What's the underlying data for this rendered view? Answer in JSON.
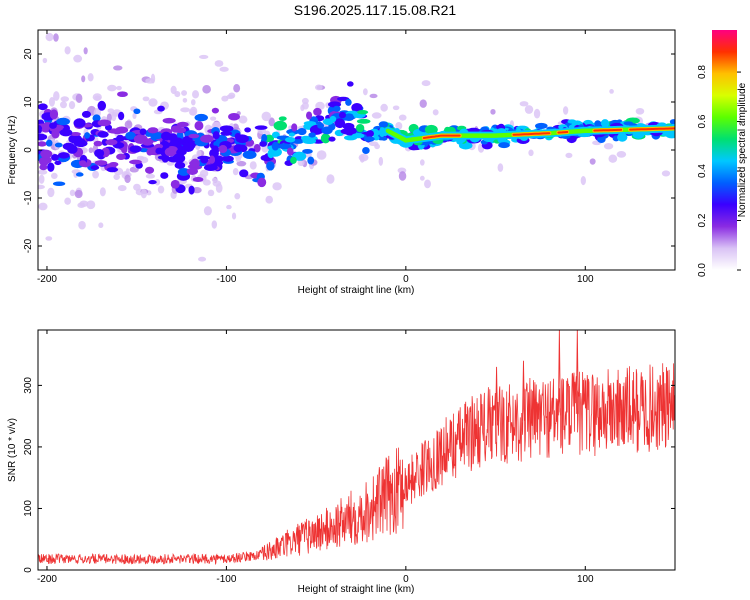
{
  "title": "S196.2025.117.15.08.R21",
  "chart_data": [
    {
      "type": "heatmap",
      "xlabel": "Height of straight line (km)",
      "ylabel": "Frequency (Hz)",
      "xlim": [
        -205,
        150
      ],
      "ylim": [
        -25,
        25
      ],
      "xticks": [
        -200,
        -100,
        0,
        100
      ],
      "yticks": [
        -20,
        -10,
        0,
        10,
        20
      ],
      "colorbar": {
        "label": "Normalized spectral amplitude",
        "ticks": [
          "0.0",
          "0.2",
          "0.4",
          "0.6",
          "0.8"
        ],
        "tick_values": [
          0,
          0.2,
          0.4,
          0.6,
          0.8
        ],
        "range": [
          0,
          0.97
        ],
        "colormap": [
          "#ffffff",
          "#d9c2f5",
          "#8a2be2",
          "#3a00ff",
          "#0060ff",
          "#00c8ff",
          "#00e070",
          "#5cff00",
          "#d8ff00",
          "#ffc000",
          "#ff3000",
          "#ff0080"
        ]
      },
      "ridge": [
        {
          "x": -200,
          "y": 2
        },
        {
          "x": -150,
          "y": 1
        },
        {
          "x": -100,
          "y": 1
        },
        {
          "x": -75,
          "y": 0
        },
        {
          "x": -60,
          "y": 2
        },
        {
          "x": -50,
          "y": 4
        },
        {
          "x": -40,
          "y": 7
        },
        {
          "x": -30,
          "y": 6
        },
        {
          "x": -20,
          "y": 3
        },
        {
          "x": -10,
          "y": 4
        },
        {
          "x": 0,
          "y": 2
        },
        {
          "x": 20,
          "y": 3
        },
        {
          "x": 50,
          "y": 3
        },
        {
          "x": 80,
          "y": 3.5
        },
        {
          "x": 100,
          "y": 4
        },
        {
          "x": 150,
          "y": 4.5
        }
      ]
    },
    {
      "type": "line",
      "xlabel": "Height of straight line (km)",
      "ylabel": "SNR (10 * v/v)",
      "xlim": [
        -205,
        150
      ],
      "ylim": [
        0,
        390
      ],
      "xticks": [
        -200,
        -100,
        0,
        100
      ],
      "yticks": [
        0,
        100,
        200,
        300
      ],
      "series_color": "#ee3333",
      "trend": [
        {
          "x": -205,
          "y": 18
        },
        {
          "x": -100,
          "y": 18
        },
        {
          "x": -80,
          "y": 25
        },
        {
          "x": -60,
          "y": 50
        },
        {
          "x": -40,
          "y": 70
        },
        {
          "x": -20,
          "y": 100
        },
        {
          "x": 0,
          "y": 140
        },
        {
          "x": 20,
          "y": 190
        },
        {
          "x": 40,
          "y": 230
        },
        {
          "x": 60,
          "y": 240
        },
        {
          "x": 80,
          "y": 250
        },
        {
          "x": 100,
          "y": 255
        },
        {
          "x": 150,
          "y": 265
        }
      ],
      "spikes": [
        {
          "x": 85,
          "y": 390
        },
        {
          "x": 95,
          "y": 390
        },
        {
          "x": 65,
          "y": 340
        },
        {
          "x": 50,
          "y": 330
        }
      ]
    }
  ]
}
